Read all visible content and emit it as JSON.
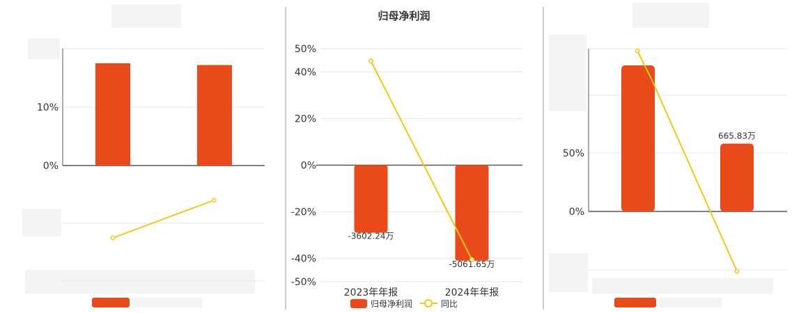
{
  "colors": {
    "bar": "#e84a1a",
    "line": "#f2c811",
    "grid": "#e6e6e6",
    "axis": "#555555",
    "divider": "#999999"
  },
  "chart_data": [
    {
      "type": "bar",
      "title": "",
      "y_ticks": [
        "10%",
        "0%"
      ],
      "categories": [
        "",
        ""
      ],
      "series": [
        {
          "values": [
            17.5,
            17.2
          ]
        },
        {
          "type": "line",
          "values": [
            null,
            null
          ]
        }
      ],
      "grid": true
    },
    {
      "type": "bar",
      "title": "归母净利润",
      "categories": [
        "2023年年报",
        "2024年年报"
      ],
      "y_ticks": [
        "50%",
        "40%",
        "20%",
        "0%",
        "-20%",
        "-40%",
        "-50%"
      ],
      "ylim": [
        -50,
        50
      ],
      "series": [
        {
          "name": "归母净利润",
          "values": [
            -29,
            -41
          ],
          "labels": [
            "-3602.24万",
            "-5061.65万"
          ]
        },
        {
          "name": "同比",
          "type": "line",
          "values": [
            44.7,
            -40.5
          ]
        }
      ],
      "legend": "bottom",
      "grid": true
    },
    {
      "type": "bar",
      "title": "",
      "categories": [
        "",
        ""
      ],
      "y_ticks": [
        "50%",
        "0%"
      ],
      "series": [
        {
          "values": [
            125,
            58
          ],
          "labels": [
            "",
            "665.83万"
          ]
        },
        {
          "type": "line",
          "values": [
            null,
            null
          ]
        }
      ],
      "grid": true
    }
  ]
}
